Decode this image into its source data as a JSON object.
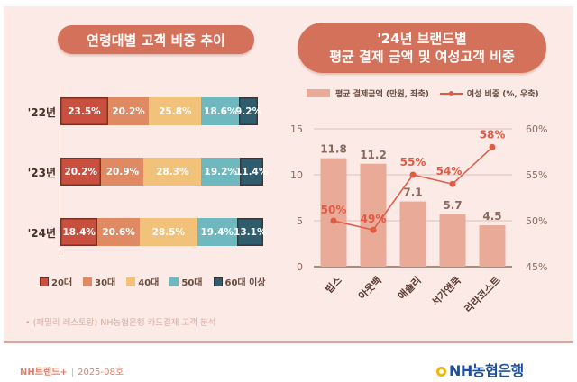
{
  "left_panel": {
    "title": "연령대별 고객 비중 추이",
    "source_note": "• (패밀리 레스토랑) NH농협은행 카드결제 고객 분석"
  },
  "right_panel": {
    "title_line1": "'24년 브랜드별",
    "title_line2": "평균 결제 금액 및 여성고객 비중",
    "legend_bar": "평균 결제금액 (만원, 좌축)",
    "legend_line": "여성 비중 (%, 우축)"
  },
  "footer": {
    "publication": "NH트렌드+",
    "separator": "|",
    "issue": "2025-08호",
    "logo_text": "NH농협은행",
    "logo_icon": "nh-bank-logo-icon"
  },
  "chart_data": [
    {
      "type": "bar",
      "subtype": "stacked-horizontal-100",
      "title": "연령대별 고객 비중 추이",
      "categories": [
        "'22년",
        "'23년",
        "'24년"
      ],
      "series": [
        {
          "name": "20대",
          "color": "#c9503e",
          "values": [
            23.5,
            20.2,
            18.4
          ],
          "labels": [
            "23.5%",
            "20.2%",
            "18.4%"
          ]
        },
        {
          "name": "30대",
          "color": "#df8a62",
          "values": [
            20.2,
            20.9,
            20.6
          ],
          "labels": [
            "20.2%",
            "20.9%",
            "20.6%"
          ]
        },
        {
          "name": "40대",
          "color": "#f2c27a",
          "values": [
            25.8,
            28.3,
            28.5
          ],
          "labels": [
            "25.8%",
            "28.3%",
            "28.5%"
          ]
        },
        {
          "name": "50대",
          "color": "#6fb8c0",
          "values": [
            18.6,
            19.2,
            19.4
          ],
          "labels": [
            "18.6%",
            "19.2%",
            "19.4%"
          ]
        },
        {
          "name": "60대 이상",
          "color": "#2f5d6e",
          "values": [
            9.2,
            11.4,
            13.1
          ],
          "labels": [
            "9.2%",
            "11.4%",
            "13.1%"
          ]
        }
      ],
      "legend": "bottom"
    },
    {
      "type": "bar",
      "subtype": "bar-line-combo-dual-axis",
      "title": "'24년 브랜드별 평균 결제 금액 및 여성고객 비중",
      "categories": [
        "빕스",
        "아웃백",
        "애슐리",
        "서가앤쿡",
        "라라코스트"
      ],
      "series": [
        {
          "name": "평균 결제금액 (만원, 좌축)",
          "type": "bar",
          "axis": "left",
          "color": "#eaaa98",
          "values": [
            11.8,
            11.2,
            7.1,
            5.7,
            4.5
          ],
          "labels": [
            "11.8",
            "11.2",
            "7.1",
            "5.7",
            "4.5"
          ]
        },
        {
          "name": "여성 비중 (%, 우축)",
          "type": "line",
          "axis": "right",
          "color": "#e05a45",
          "values": [
            50,
            49,
            55,
            54,
            58
          ],
          "labels": [
            "50%",
            "49%",
            "55%",
            "54%",
            "58%"
          ]
        }
      ],
      "y_left": {
        "ticks": [
          "0",
          "5",
          "10",
          "15"
        ],
        "range": [
          0,
          15
        ]
      },
      "y_right": {
        "ticks": [
          "45%",
          "50%",
          "55%",
          "60%"
        ],
        "range": [
          45,
          60
        ]
      },
      "grid": true,
      "legend": "top"
    }
  ]
}
